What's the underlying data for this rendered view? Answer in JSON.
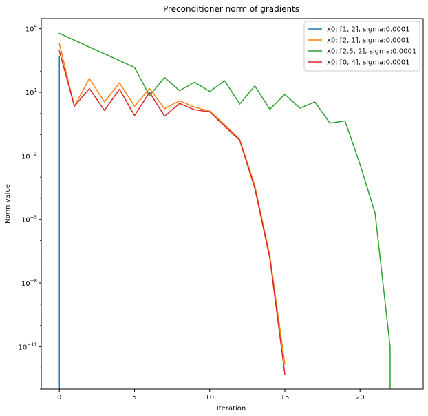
{
  "chart_data": {
    "type": "line",
    "title": "Preconditioner norm of gradients",
    "xlabel": "Iteration",
    "ylabel": "Norm value",
    "yscale": "log",
    "xlim": [
      -1.2,
      24.2
    ],
    "ylim": [
      1e-13,
      30000
    ],
    "xticks": [
      0,
      5,
      10,
      15,
      20
    ],
    "xtick_labels": [
      "0",
      "5",
      "10",
      "15",
      "20"
    ],
    "yticks": [
      10000.0,
      10,
      0.01,
      1e-05,
      1e-08,
      1e-11
    ],
    "ytick_labels": [
      {
        "base": "10",
        "exp": "4"
      },
      {
        "base": "10",
        "exp": "1"
      },
      {
        "base": "10",
        "exp": "−2"
      },
      {
        "base": "10",
        "exp": "−5"
      },
      {
        "base": "10",
        "exp": "−8"
      },
      {
        "base": "10",
        "exp": "−11"
      }
    ],
    "grid": false,
    "legend_position": "top-right",
    "series": [
      {
        "name": "x0: [1, 2], sigma:0.0001",
        "color": "#1f77b4",
        "x": [
          0,
          0
        ],
        "y": [
          500,
          1e-13
        ]
      },
      {
        "name": "x0: [2, 1], sigma:0.0001",
        "color": "#ff7f0e",
        "x": [
          0,
          1,
          2,
          3,
          4,
          5,
          6,
          7,
          8,
          9,
          10,
          11,
          12,
          13,
          14,
          15
        ],
        "y": [
          2000,
          2.2,
          45,
          3.5,
          28,
          2.2,
          15,
          1.7,
          4,
          2.0,
          1.3,
          0.3,
          0.06,
          0.0004,
          2e-07,
          1.5e-12
        ]
      },
      {
        "name": "x0: [2.5, 2], sigma:0.0001",
        "color": "#2ca02c",
        "x": [
          0,
          5,
          6,
          7,
          8,
          9,
          10,
          11,
          12,
          13,
          14,
          15,
          16,
          17,
          18,
          19,
          20,
          21,
          22,
          22
        ],
        "y": [
          6000,
          150,
          7,
          50,
          12,
          30,
          11,
          35,
          2.8,
          20,
          1.6,
          8,
          1.8,
          3.5,
          0.35,
          0.45,
          0.004,
          2e-05,
          1e-11,
          1e-13
        ]
      },
      {
        "name": "x0: [0, 4], sigma:0.0001",
        "color": "#d62728",
        "x": [
          0,
          1,
          2,
          3,
          4,
          5,
          6,
          7,
          8,
          9,
          10,
          11,
          12,
          13,
          14,
          15
        ],
        "y": [
          900,
          2.2,
          15,
          1.4,
          14,
          0.8,
          10,
          0.75,
          3,
          1.5,
          1.2,
          0.25,
          0.055,
          0.0003,
          1.5e-07,
          5e-13
        ]
      }
    ]
  }
}
